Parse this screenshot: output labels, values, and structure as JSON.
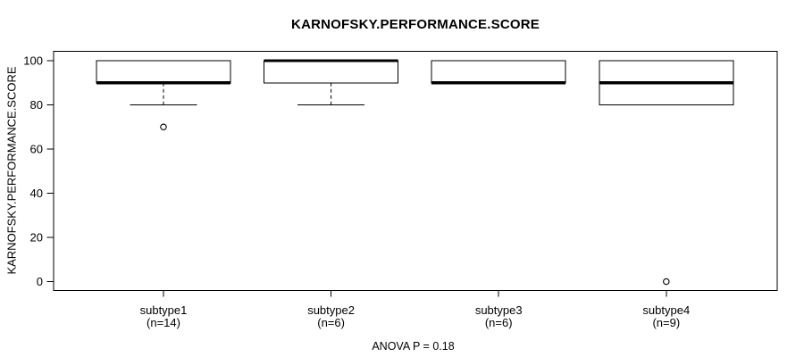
{
  "chart_data": {
    "type": "boxplot",
    "title": "KARNOFSKY.PERFORMANCE.SCORE",
    "ylabel": "KARNOFSKY.PERFORMANCE.SCORE",
    "caption": "ANOVA P = 0.18",
    "yticks": [
      0,
      20,
      40,
      60,
      80,
      100
    ],
    "ylim": [
      0,
      104
    ],
    "grid": false,
    "legend": "none",
    "groups": [
      {
        "label": "subtype1",
        "n_label": "(n=14)",
        "q1": 90,
        "median": 90,
        "q3": 100,
        "whisker_low": 80,
        "whisker_high": 100,
        "outliers": [
          70
        ]
      },
      {
        "label": "subtype2",
        "n_label": "(n=6)",
        "q1": 90,
        "median": 100,
        "q3": 100,
        "whisker_low": 80,
        "whisker_high": 100,
        "outliers": []
      },
      {
        "label": "subtype3",
        "n_label": "(n=6)",
        "q1": 90,
        "median": 90,
        "q3": 100,
        "whisker_low": 90,
        "whisker_high": 100,
        "outliers": []
      },
      {
        "label": "subtype4",
        "n_label": "(n=9)",
        "q1": 80,
        "median": 90,
        "q3": 100,
        "whisker_low": 80,
        "whisker_high": 100,
        "outliers": [
          0
        ]
      }
    ],
    "colors": {
      "line": "#000000",
      "box_fill": "#ffffff",
      "background": "#ffffff"
    }
  }
}
